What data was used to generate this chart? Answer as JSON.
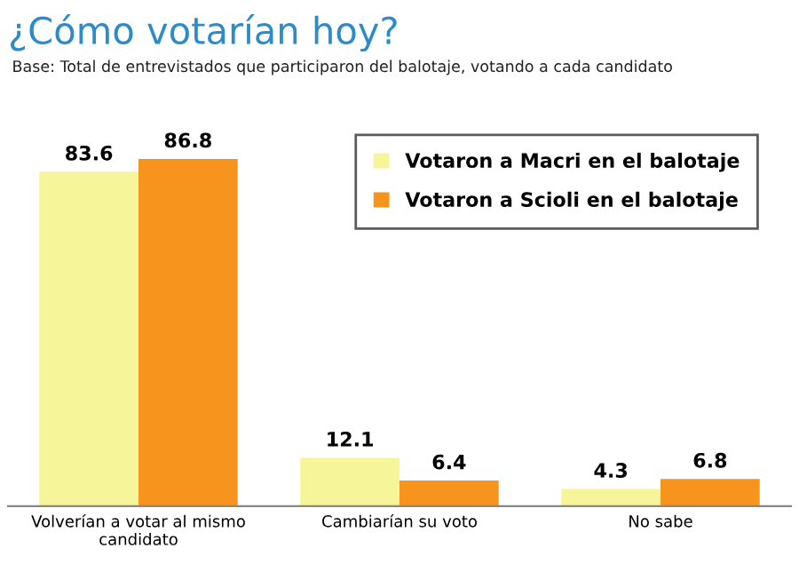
{
  "chart_data": {
    "type": "bar",
    "title": "¿Cómo votarían hoy?",
    "subtitle": "Base: Total de entrevistados que participaron del balotaje, votando a cada candidato",
    "categories": [
      "Volverían a votar al mismo\ncandidato",
      "Cambiarían su voto",
      "No sabe"
    ],
    "series": [
      {
        "name": "Votaron a Macri en el balotaje",
        "color": "#f7f59a",
        "values": [
          83.6,
          12.1,
          4.3
        ]
      },
      {
        "name": "Votaron a Scioli en el balotaje",
        "color": "#f7941d",
        "values": [
          86.8,
          6.4,
          6.8
        ]
      }
    ],
    "data_labels": true,
    "legend": "top right",
    "grid": false,
    "tick_labels": "x"
  }
}
